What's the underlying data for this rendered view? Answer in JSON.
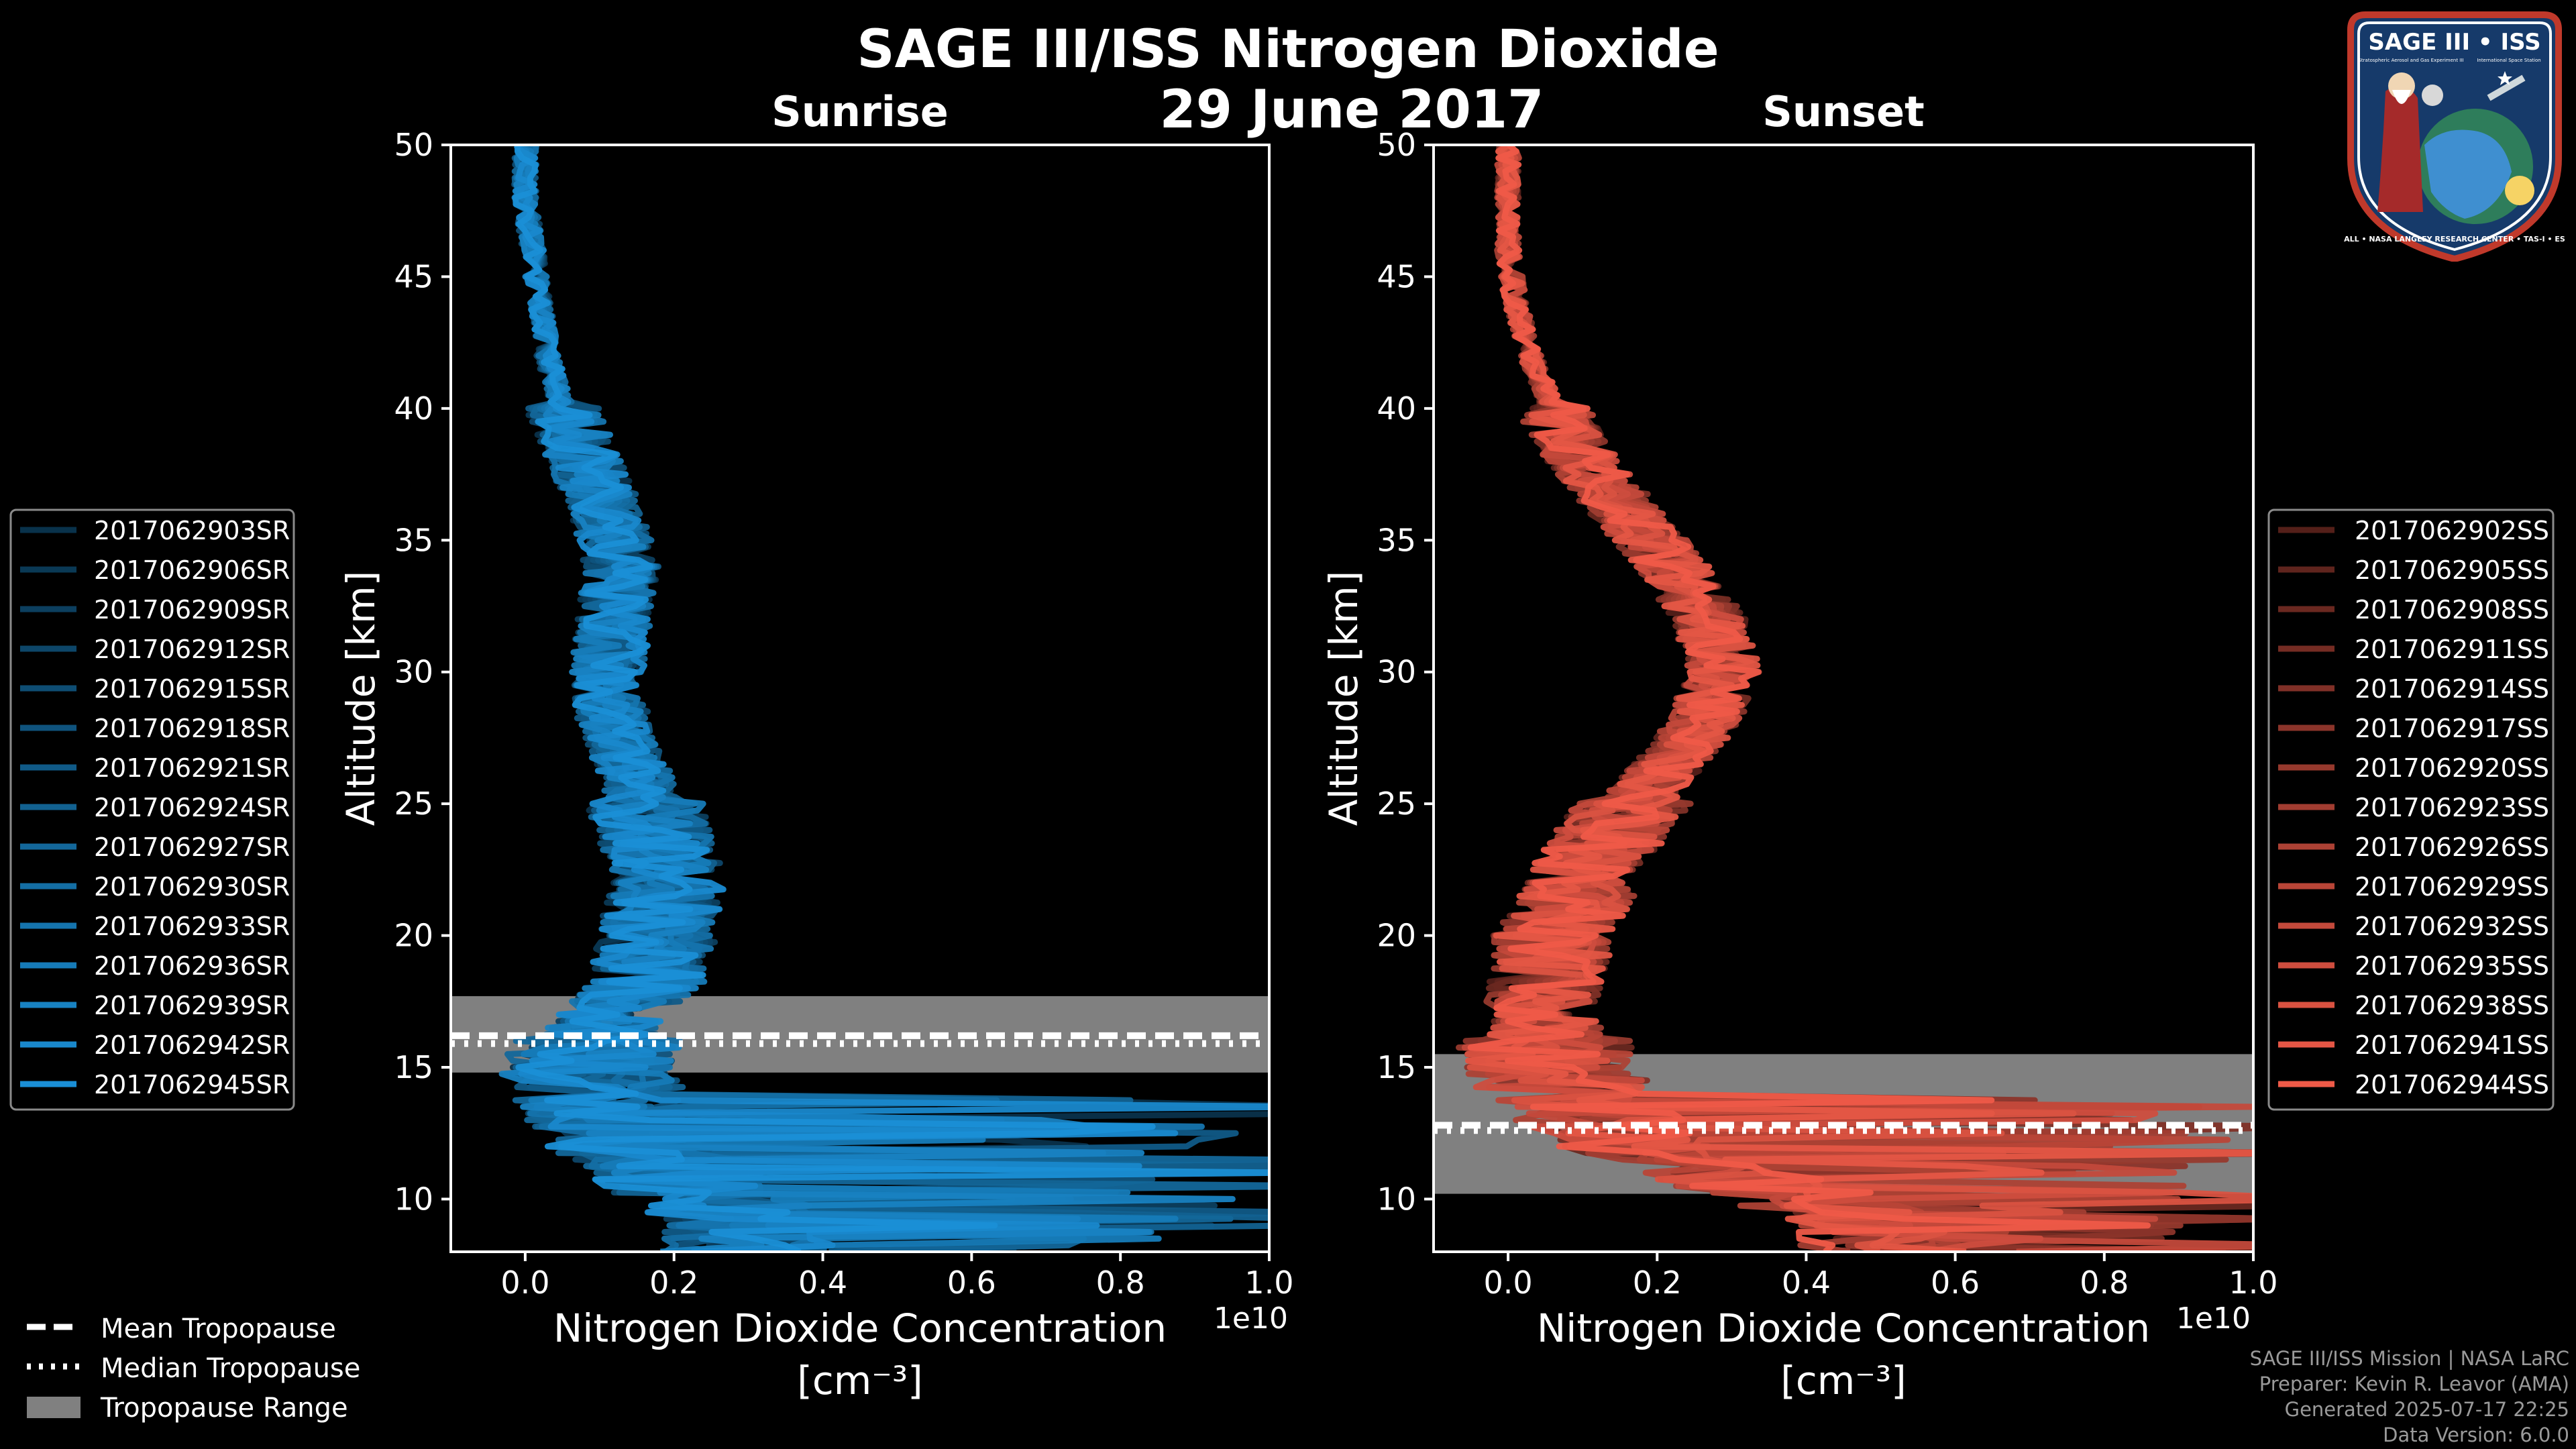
{
  "title": "SAGE III/ISS Nitrogen Dioxide",
  "date": "29 June 2017",
  "colors": {
    "background": "#000000",
    "sunrise": "#1a8fd6",
    "sunset": "#ef5a48",
    "tropopause_band": "#808080"
  },
  "chart_data": [
    {
      "type": "line",
      "title": "Sunrise",
      "xlabel_line1": "Nitrogen Dioxide Concentration",
      "xlabel_line2": "[cm⁻³]",
      "ylabel": "Altitude [km]",
      "x_offset_label": "1e10",
      "xlim": [
        -0.1,
        1.0
      ],
      "ylim": [
        8,
        50
      ],
      "xticks": [
        0.0,
        0.2,
        0.4,
        0.6,
        0.8,
        1.0
      ],
      "xtick_labels": [
        "0.0",
        "0.2",
        "0.4",
        "0.6",
        "0.8",
        "1.0"
      ],
      "yticks": [
        10,
        15,
        20,
        25,
        30,
        35,
        40,
        45,
        50
      ],
      "ytick_labels": [
        "10",
        "15",
        "20",
        "25",
        "30",
        "35",
        "40",
        "45",
        "50"
      ],
      "tropopause_range": [
        14.8,
        17.7
      ],
      "mean_tropopause": 16.2,
      "median_tropopause": 15.9,
      "legend_location": "left",
      "mean_profile": {
        "altitude": [
          50,
          48,
          46,
          44,
          42,
          40,
          38,
          36,
          34,
          32,
          30,
          28,
          26,
          24,
          22,
          20,
          18,
          17,
          16,
          15,
          14,
          13,
          12,
          11,
          10,
          9,
          8
        ],
        "value": [
          0.0,
          0.0,
          0.01,
          0.02,
          0.03,
          0.05,
          0.08,
          0.11,
          0.13,
          0.12,
          0.11,
          0.12,
          0.15,
          0.17,
          0.19,
          0.18,
          0.16,
          0.12,
          0.1,
          0.08,
          0.1,
          0.12,
          0.15,
          0.2,
          0.25,
          0.3,
          0.3
        ]
      },
      "series": [
        {
          "name": "2017062903SR"
        },
        {
          "name": "2017062906SR"
        },
        {
          "name": "2017062909SR"
        },
        {
          "name": "2017062912SR"
        },
        {
          "name": "2017062915SR"
        },
        {
          "name": "2017062918SR"
        },
        {
          "name": "2017062921SR"
        },
        {
          "name": "2017062924SR"
        },
        {
          "name": "2017062927SR"
        },
        {
          "name": "2017062930SR"
        },
        {
          "name": "2017062933SR"
        },
        {
          "name": "2017062936SR"
        },
        {
          "name": "2017062939SR"
        },
        {
          "name": "2017062942SR"
        },
        {
          "name": "2017062945SR"
        }
      ]
    },
    {
      "type": "line",
      "title": "Sunset",
      "xlabel_line1": "Nitrogen Dioxide Concentration",
      "xlabel_line2": "[cm⁻³]",
      "ylabel": "Altitude [km]",
      "x_offset_label": "1e10",
      "xlim": [
        -0.1,
        1.0
      ],
      "ylim": [
        8,
        50
      ],
      "xticks": [
        0.0,
        0.2,
        0.4,
        0.6,
        0.8,
        1.0
      ],
      "xtick_labels": [
        "0.0",
        "0.2",
        "0.4",
        "0.6",
        "0.8",
        "1.0"
      ],
      "yticks": [
        10,
        15,
        20,
        25,
        30,
        35,
        40,
        45,
        50
      ],
      "ytick_labels": [
        "10",
        "15",
        "20",
        "25",
        "30",
        "35",
        "40",
        "45",
        "50"
      ],
      "tropopause_range": [
        10.2,
        15.5
      ],
      "mean_tropopause": 12.8,
      "median_tropopause": 12.6,
      "legend_location": "right",
      "mean_profile": {
        "altitude": [
          50,
          48,
          46,
          44,
          42,
          40,
          38,
          36,
          34,
          32,
          30,
          28,
          26,
          24,
          22,
          20,
          18,
          16,
          15,
          14,
          13,
          12,
          11,
          10,
          9,
          8
        ],
        "value": [
          0.0,
          0.0,
          0.0,
          0.01,
          0.03,
          0.06,
          0.1,
          0.16,
          0.22,
          0.27,
          0.29,
          0.26,
          0.2,
          0.14,
          0.1,
          0.06,
          0.05,
          0.05,
          0.06,
          0.08,
          0.12,
          0.18,
          0.28,
          0.4,
          0.5,
          0.5
        ]
      },
      "series": [
        {
          "name": "2017062902SS"
        },
        {
          "name": "2017062905SS"
        },
        {
          "name": "2017062908SS"
        },
        {
          "name": "2017062911SS"
        },
        {
          "name": "2017062914SS"
        },
        {
          "name": "2017062917SS"
        },
        {
          "name": "2017062920SS"
        },
        {
          "name": "2017062923SS"
        },
        {
          "name": "2017062926SS"
        },
        {
          "name": "2017062929SS"
        },
        {
          "name": "2017062932SS"
        },
        {
          "name": "2017062935SS"
        },
        {
          "name": "2017062938SS"
        },
        {
          "name": "2017062941SS"
        },
        {
          "name": "2017062944SS"
        }
      ]
    }
  ],
  "tropopause_legend": {
    "mean": "Mean Tropopause",
    "median": "Median Tropopause",
    "range": "Tropopause Range"
  },
  "logo": {
    "name": "SAGE III • ISS",
    "subtitle_left": "Stratospheric Aerosol and Gas Experiment III",
    "subtitle_right": "International Space Station",
    "ring_text": "BALL • NASA LANGLEY RESEARCH CENTER • TAS-I • ESA"
  },
  "footer": {
    "line1": "SAGE III/ISS Mission | NASA LaRC",
    "line2": "Preparer: Kevin R. Leavor (AMA)",
    "line3": "Generated 2025-07-17 22:25",
    "line4": "Data Version: 6.0.0"
  }
}
